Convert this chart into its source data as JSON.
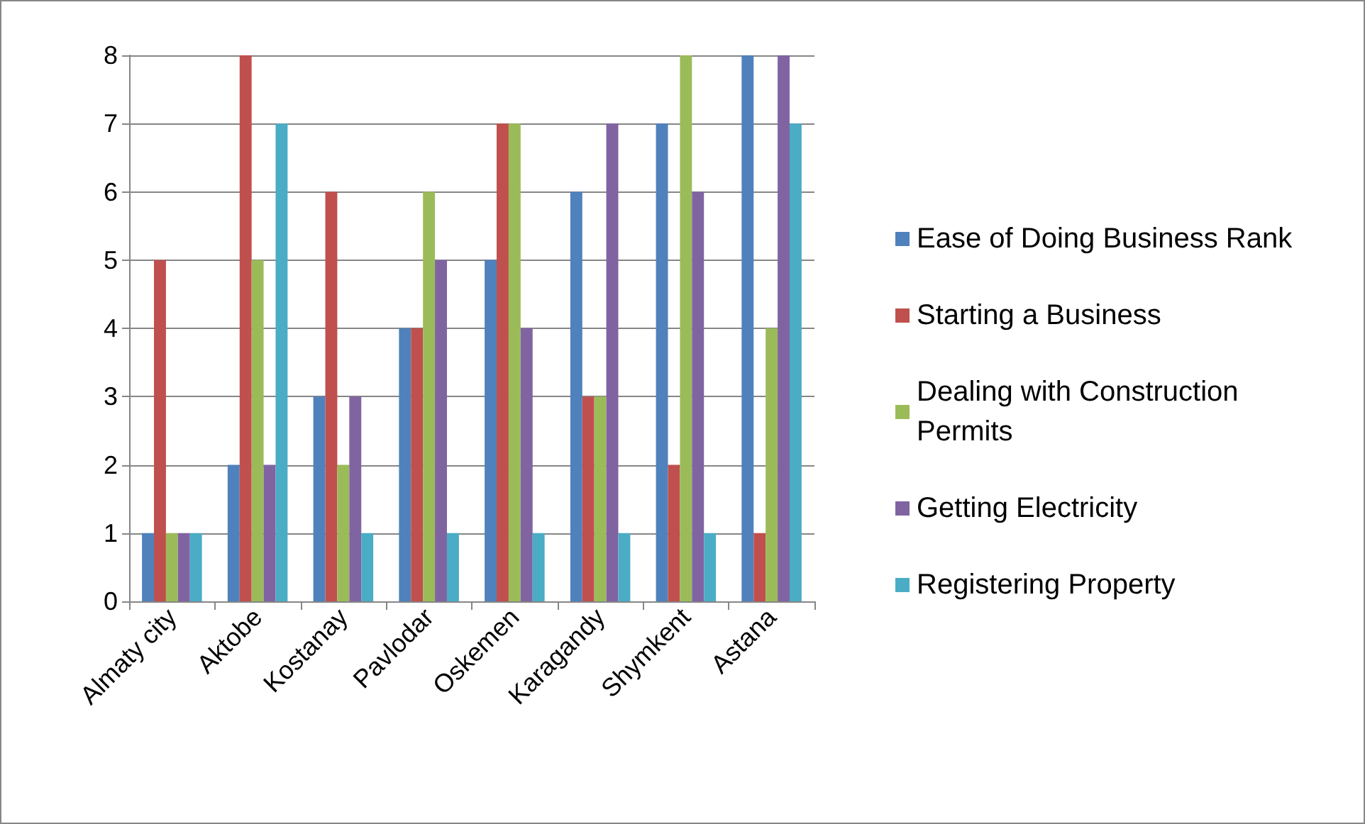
{
  "chart_data": {
    "type": "bar",
    "categories": [
      "Almaty city",
      "Aktobe",
      "Kostanay",
      "Pavlodar",
      "Oskemen",
      "Karagandy",
      "Shymkent",
      "Astana"
    ],
    "series": [
      {
        "name": "Ease of Doing Business Rank",
        "color": "#4f81bd",
        "values": [
          1,
          2,
          3,
          4,
          5,
          6,
          7,
          8
        ]
      },
      {
        "name": "Starting a Business",
        "color": "#c0504d",
        "values": [
          5,
          8,
          6,
          4,
          7,
          3,
          2,
          1
        ]
      },
      {
        "name": "Dealing with Construction Permits",
        "color": "#9bbb59",
        "values": [
          1,
          5,
          2,
          6,
          7,
          3,
          8,
          4
        ]
      },
      {
        "name": "Getting Electricity",
        "color": "#8064a2",
        "values": [
          1,
          2,
          3,
          5,
          4,
          7,
          6,
          8
        ]
      },
      {
        "name": "Registering Property",
        "color": "#4bacc6",
        "values": [
          1,
          7,
          1,
          1,
          1,
          1,
          1,
          7
        ]
      }
    ],
    "ylim": [
      0,
      8
    ],
    "yticks": [
      0,
      1,
      2,
      3,
      4,
      5,
      6,
      7,
      8
    ],
    "grid": "y",
    "legend": "right"
  }
}
